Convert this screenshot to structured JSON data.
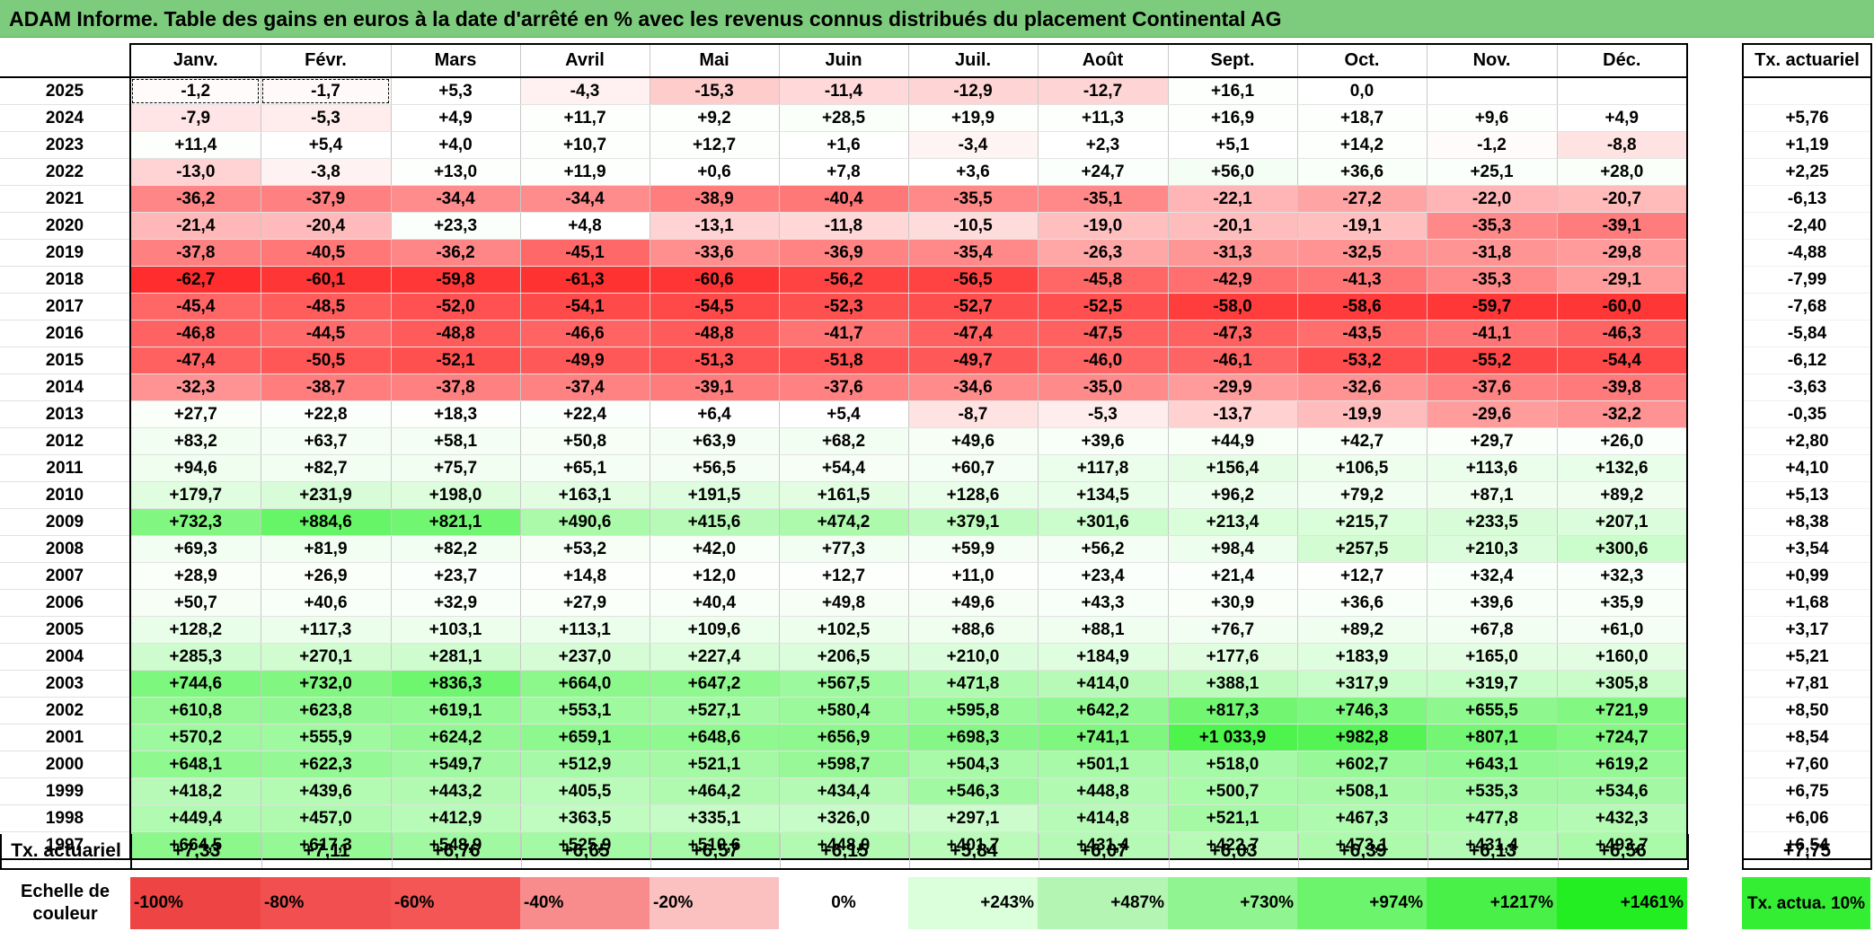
{
  "title": "ADAM Informe. Table des gains en euros à la date d'arrêté en % avec les revenus connus distribués du placement Continental AG",
  "months": [
    "Janv.",
    "Févr.",
    "Mars",
    "Avril",
    "Mai",
    "Juin",
    "Juil.",
    "Août",
    "Sept.",
    "Oct.",
    "Nov.",
    "Déc."
  ],
  "tx_header": "Tx. actuariel",
  "rows": [
    {
      "year": "2025",
      "values": [
        "-1,2",
        "-1,7",
        "+5,3",
        "-4,3",
        "-15,3",
        "-11,4",
        "-12,9",
        "-12,7",
        "+16,1",
        "0,0",
        "",
        ""
      ],
      "tx": ""
    },
    {
      "year": "2024",
      "values": [
        "-7,9",
        "-5,3",
        "+4,9",
        "+11,7",
        "+9,2",
        "+28,5",
        "+19,9",
        "+11,3",
        "+16,9",
        "+18,7",
        "+9,6",
        "+4,9"
      ],
      "tx": "+5,76"
    },
    {
      "year": "2023",
      "values": [
        "+11,4",
        "+5,4",
        "+4,0",
        "+10,7",
        "+12,7",
        "+1,6",
        "-3,4",
        "+2,3",
        "+5,1",
        "+14,2",
        "-1,2",
        "-8,8"
      ],
      "tx": "+1,19"
    },
    {
      "year": "2022",
      "values": [
        "-13,0",
        "-3,8",
        "+13,0",
        "+11,9",
        "+0,6",
        "+7,8",
        "+3,6",
        "+24,7",
        "+56,0",
        "+36,6",
        "+25,1",
        "+28,0"
      ],
      "tx": "+2,25"
    },
    {
      "year": "2021",
      "values": [
        "-36,2",
        "-37,9",
        "-34,4",
        "-34,4",
        "-38,9",
        "-40,4",
        "-35,5",
        "-35,1",
        "-22,1",
        "-27,2",
        "-22,0",
        "-20,7"
      ],
      "tx": "-6,13"
    },
    {
      "year": "2020",
      "values": [
        "-21,4",
        "-20,4",
        "+23,3",
        "+4,8",
        "-13,1",
        "-11,8",
        "-10,5",
        "-19,0",
        "-20,1",
        "-19,1",
        "-35,3",
        "-39,1"
      ],
      "tx": "-2,40"
    },
    {
      "year": "2019",
      "values": [
        "-37,8",
        "-40,5",
        "-36,2",
        "-45,1",
        "-33,6",
        "-36,9",
        "-35,4",
        "-26,3",
        "-31,3",
        "-32,5",
        "-31,8",
        "-29,8"
      ],
      "tx": "-4,88"
    },
    {
      "year": "2018",
      "values": [
        "-62,7",
        "-60,1",
        "-59,8",
        "-61,3",
        "-60,6",
        "-56,2",
        "-56,5",
        "-45,8",
        "-42,9",
        "-41,3",
        "-35,3",
        "-29,1"
      ],
      "tx": "-7,99"
    },
    {
      "year": "2017",
      "values": [
        "-45,4",
        "-48,5",
        "-52,0",
        "-54,1",
        "-54,5",
        "-52,3",
        "-52,7",
        "-52,5",
        "-58,0",
        "-58,6",
        "-59,7",
        "-60,0"
      ],
      "tx": "-7,68"
    },
    {
      "year": "2016",
      "values": [
        "-46,8",
        "-44,5",
        "-48,8",
        "-46,6",
        "-48,8",
        "-41,7",
        "-47,4",
        "-47,5",
        "-47,3",
        "-43,5",
        "-41,1",
        "-46,3"
      ],
      "tx": "-5,84"
    },
    {
      "year": "2015",
      "values": [
        "-47,4",
        "-50,5",
        "-52,1",
        "-49,9",
        "-51,3",
        "-51,8",
        "-49,7",
        "-46,0",
        "-46,1",
        "-53,2",
        "-55,2",
        "-54,4"
      ],
      "tx": "-6,12"
    },
    {
      "year": "2014",
      "values": [
        "-32,3",
        "-38,7",
        "-37,8",
        "-37,4",
        "-39,1",
        "-37,6",
        "-34,6",
        "-35,0",
        "-29,9",
        "-32,6",
        "-37,6",
        "-39,8"
      ],
      "tx": "-3,63"
    },
    {
      "year": "2013",
      "values": [
        "+27,7",
        "+22,8",
        "+18,3",
        "+22,4",
        "+6,4",
        "+5,4",
        "-8,7",
        "-5,3",
        "-13,7",
        "-19,9",
        "-29,6",
        "-32,2"
      ],
      "tx": "-0,35"
    },
    {
      "year": "2012",
      "values": [
        "+83,2",
        "+63,7",
        "+58,1",
        "+50,8",
        "+63,9",
        "+68,2",
        "+49,6",
        "+39,6",
        "+44,9",
        "+42,7",
        "+29,7",
        "+26,0"
      ],
      "tx": "+2,80"
    },
    {
      "year": "2011",
      "values": [
        "+94,6",
        "+82,7",
        "+75,7",
        "+65,1",
        "+56,5",
        "+54,4",
        "+60,7",
        "+117,8",
        "+156,4",
        "+106,5",
        "+113,6",
        "+132,6"
      ],
      "tx": "+4,10"
    },
    {
      "year": "2010",
      "values": [
        "+179,7",
        "+231,9",
        "+198,0",
        "+163,1",
        "+191,5",
        "+161,5",
        "+128,6",
        "+134,5",
        "+96,2",
        "+79,2",
        "+87,1",
        "+89,2"
      ],
      "tx": "+5,13"
    },
    {
      "year": "2009",
      "values": [
        "+732,3",
        "+884,6",
        "+821,1",
        "+490,6",
        "+415,6",
        "+474,2",
        "+379,1",
        "+301,6",
        "+213,4",
        "+215,7",
        "+233,5",
        "+207,1"
      ],
      "tx": "+8,38"
    },
    {
      "year": "2008",
      "values": [
        "+69,3",
        "+81,9",
        "+82,2",
        "+53,2",
        "+42,0",
        "+77,3",
        "+59,9",
        "+56,2",
        "+98,4",
        "+257,5",
        "+210,3",
        "+300,6"
      ],
      "tx": "+3,54"
    },
    {
      "year": "2007",
      "values": [
        "+28,9",
        "+26,9",
        "+23,7",
        "+14,8",
        "+12,0",
        "+12,7",
        "+11,0",
        "+23,4",
        "+21,4",
        "+12,7",
        "+32,4",
        "+32,3"
      ],
      "tx": "+0,99"
    },
    {
      "year": "2006",
      "values": [
        "+50,7",
        "+40,6",
        "+32,9",
        "+27,9",
        "+40,4",
        "+49,8",
        "+49,6",
        "+43,3",
        "+30,9",
        "+36,6",
        "+39,6",
        "+35,9"
      ],
      "tx": "+1,68"
    },
    {
      "year": "2005",
      "values": [
        "+128,2",
        "+117,3",
        "+103,1",
        "+113,1",
        "+109,6",
        "+102,5",
        "+88,6",
        "+88,1",
        "+76,7",
        "+89,2",
        "+67,8",
        "+61,0"
      ],
      "tx": "+3,17"
    },
    {
      "year": "2004",
      "values": [
        "+285,3",
        "+270,1",
        "+281,1",
        "+237,0",
        "+227,4",
        "+206,5",
        "+210,0",
        "+184,9",
        "+177,6",
        "+183,9",
        "+165,0",
        "+160,0"
      ],
      "tx": "+5,21"
    },
    {
      "year": "2003",
      "values": [
        "+744,6",
        "+732,0",
        "+836,3",
        "+664,0",
        "+647,2",
        "+567,5",
        "+471,8",
        "+414,0",
        "+388,1",
        "+317,9",
        "+319,7",
        "+305,8"
      ],
      "tx": "+7,81"
    },
    {
      "year": "2002",
      "values": [
        "+610,8",
        "+623,8",
        "+619,1",
        "+553,1",
        "+527,1",
        "+580,4",
        "+595,8",
        "+642,2",
        "+817,3",
        "+746,3",
        "+655,5",
        "+721,9"
      ],
      "tx": "+8,50"
    },
    {
      "year": "2001",
      "values": [
        "+570,2",
        "+555,9",
        "+624,2",
        "+659,1",
        "+648,6",
        "+656,9",
        "+698,3",
        "+741,1",
        "+1 033,9",
        "+982,8",
        "+807,1",
        "+724,7"
      ],
      "tx": "+8,54"
    },
    {
      "year": "2000",
      "values": [
        "+648,1",
        "+622,3",
        "+549,7",
        "+512,9",
        "+521,1",
        "+598,7",
        "+504,3",
        "+501,1",
        "+518,0",
        "+602,7",
        "+643,1",
        "+619,2"
      ],
      "tx": "+7,60"
    },
    {
      "year": "1999",
      "values": [
        "+418,2",
        "+439,6",
        "+443,2",
        "+405,5",
        "+464,2",
        "+434,4",
        "+546,3",
        "+448,8",
        "+500,7",
        "+508,1",
        "+535,3",
        "+534,6"
      ],
      "tx": "+6,75"
    },
    {
      "year": "1998",
      "values": [
        "+449,4",
        "+457,0",
        "+412,9",
        "+363,5",
        "+335,1",
        "+326,0",
        "+297,1",
        "+414,8",
        "+521,1",
        "+467,3",
        "+477,8",
        "+432,3"
      ],
      "tx": "+6,06"
    },
    {
      "year": "1997",
      "values": [
        "+664,5",
        "+617,3",
        "+548,9",
        "+525,9",
        "+510,6",
        "+448,0",
        "+401,7",
        "+431,4",
        "+422,7",
        "+473,1",
        "+431,4",
        "+493,7"
      ],
      "tx": "+6,54"
    }
  ],
  "footer": {
    "label": "Tx. actuariel",
    "values": [
      "+7,33",
      "+7,11",
      "+6,76",
      "+6,65",
      "+6,57",
      "+6,15",
      "+5,84",
      "+6,07",
      "+6,03",
      "+6,39",
      "+6,13",
      "+6,56"
    ],
    "tx": "+7,75"
  },
  "scale": {
    "label": "Echelle de couleur",
    "items": [
      {
        "text": "-100%",
        "color": "#ee4444",
        "kind": "neg"
      },
      {
        "text": "-80%",
        "color": "#f25050",
        "kind": "neg"
      },
      {
        "text": "-60%",
        "color": "#f45656",
        "kind": "neg"
      },
      {
        "text": "-40%",
        "color": "#f88c8c",
        "kind": "neg"
      },
      {
        "text": "-20%",
        "color": "#fbc0c0",
        "kind": "neg"
      },
      {
        "text": "0%",
        "color": "#ffffff",
        "kind": "zero"
      },
      {
        "text": "+243%",
        "color": "#daffda",
        "kind": "pos"
      },
      {
        "text": "+487%",
        "color": "#b4f5b4",
        "kind": "pos"
      },
      {
        "text": "+730%",
        "color": "#90f590",
        "kind": "pos"
      },
      {
        "text": "+974%",
        "color": "#6cf56c",
        "kind": "pos"
      },
      {
        "text": "+1217%",
        "color": "#48f048",
        "kind": "pos"
      },
      {
        "text": "+1461%",
        "color": "#22ee22",
        "kind": "pos"
      }
    ],
    "tx_label": "Tx. actua. 10%",
    "tx_color": "#33ee33"
  }
}
